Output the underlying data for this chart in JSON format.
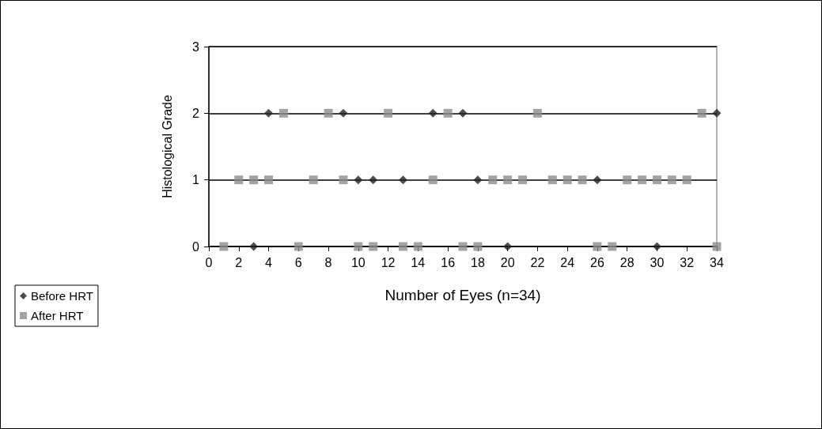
{
  "chart_data": {
    "type": "scatter",
    "xlabel": "Number of Eyes (n=34)",
    "ylabel": "Histological Grade",
    "x": [
      1,
      2,
      3,
      4,
      5,
      6,
      7,
      8,
      9,
      10,
      11,
      12,
      13,
      14,
      15,
      16,
      17,
      18,
      19,
      20,
      21,
      22,
      23,
      24,
      25,
      26,
      27,
      28,
      29,
      30,
      31,
      32,
      33,
      34
    ],
    "series": [
      {
        "name": "Before HRT",
        "color": "#222222",
        "marker": "diamond",
        "values": [
          null,
          null,
          0,
          2,
          null,
          null,
          null,
          null,
          2,
          1,
          1,
          null,
          1,
          null,
          2,
          null,
          2,
          1,
          null,
          0,
          null,
          null,
          null,
          null,
          null,
          1,
          null,
          null,
          null,
          0,
          null,
          null,
          null,
          2
        ]
      },
      {
        "name": "After HRT",
        "color": "#8c8c8c",
        "marker": "square",
        "values": [
          0,
          1,
          1,
          1,
          2,
          0,
          1,
          2,
          1,
          0,
          0,
          2,
          0,
          0,
          1,
          2,
          0,
          0,
          1,
          1,
          1,
          2,
          1,
          1,
          1,
          0,
          0,
          1,
          1,
          1,
          1,
          1,
          2,
          0
        ]
      }
    ],
    "xlim": [
      0,
      34
    ],
    "xticks": [
      0,
      2,
      4,
      6,
      8,
      10,
      12,
      14,
      16,
      18,
      20,
      22,
      24,
      26,
      28,
      30,
      32,
      34
    ],
    "ylim": [
      0,
      3
    ],
    "yticks": [
      0,
      1,
      2,
      3
    ],
    "grid": "y",
    "legend": "bottom left"
  }
}
